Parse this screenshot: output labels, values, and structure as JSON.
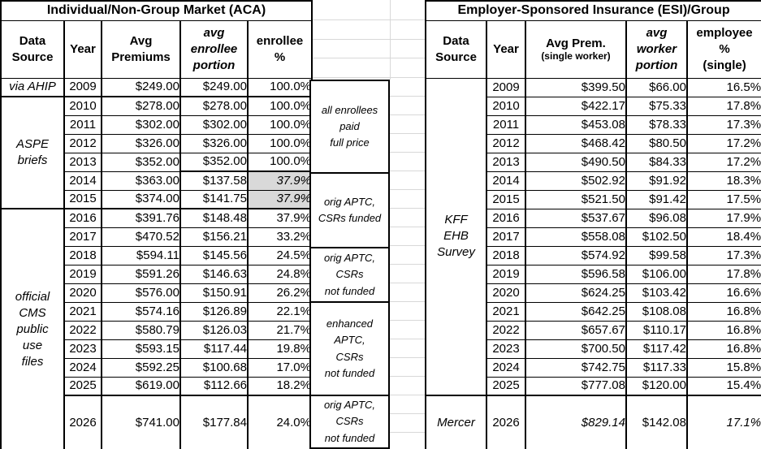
{
  "colors": {
    "cell_shading": "#d9d9d9",
    "border": "#000000",
    "gridline": "#d8d8d8"
  },
  "left_table": {
    "title": "Individual/Non-Group Market (ACA)",
    "headers": {
      "source": "Data\nSource",
      "year": "Year",
      "premium": "Avg\nPremiums",
      "portion": "avg\nenrollee\nportion",
      "pct": "enrollee\n%"
    },
    "source_groups": [
      {
        "label": "via AHIP"
      },
      {
        "label": "ASPE\nbriefs"
      },
      {
        "label": "official\nCMS\npublic\nuse\nfiles"
      }
    ],
    "rows": [
      {
        "year": "2009",
        "premium": "$249.00",
        "portion": "$249.00",
        "pct": "100.0%"
      },
      {
        "year": "2010",
        "premium": "$278.00",
        "portion": "$278.00",
        "pct": "100.0%"
      },
      {
        "year": "2011",
        "premium": "$302.00",
        "portion": "$302.00",
        "pct": "100.0%"
      },
      {
        "year": "2012",
        "premium": "$326.00",
        "portion": "$326.00",
        "pct": "100.0%"
      },
      {
        "year": "2013",
        "premium": "$352.00",
        "portion": "$352.00",
        "pct": "100.0%"
      },
      {
        "year": "2014",
        "premium": "$363.00",
        "portion": "$137.58",
        "pct": "37.9%"
      },
      {
        "year": "2015",
        "premium": "$374.00",
        "portion": "$141.75",
        "pct": "37.9%"
      },
      {
        "year": "2016",
        "premium": "$391.76",
        "portion": "$148.48",
        "pct": "37.9%"
      },
      {
        "year": "2017",
        "premium": "$470.52",
        "portion": "$156.21",
        "pct": "33.2%"
      },
      {
        "year": "2018",
        "premium": "$594.11",
        "portion": "$145.56",
        "pct": "24.5%"
      },
      {
        "year": "2019",
        "premium": "$591.26",
        "portion": "$146.63",
        "pct": "24.8%"
      },
      {
        "year": "2020",
        "premium": "$576.00",
        "portion": "$150.91",
        "pct": "26.2%"
      },
      {
        "year": "2021",
        "premium": "$574.16",
        "portion": "$126.89",
        "pct": "22.1%"
      },
      {
        "year": "2022",
        "premium": "$580.79",
        "portion": "$126.03",
        "pct": "21.7%"
      },
      {
        "year": "2023",
        "premium": "$593.15",
        "portion": "$117.44",
        "pct": "19.8%"
      },
      {
        "year": "2024",
        "premium": "$592.25",
        "portion": "$100.68",
        "pct": "17.0%"
      },
      {
        "year": "2025",
        "premium": "$619.00",
        "portion": "$112.66",
        "pct": "18.2%"
      },
      {
        "year": "2026",
        "premium": "$741.00",
        "portion": "$177.84",
        "pct": "24.0%"
      }
    ]
  },
  "annotations": [
    {
      "label": "all enrollees\npaid\nfull price"
    },
    {
      "label": "orig APTC,\nCSRs funded"
    },
    {
      "label": "orig APTC,\nCSRs\nnot funded"
    },
    {
      "label": "enhanced\nAPTC,\nCSRs\nnot funded"
    },
    {
      "label": "orig APTC,\nCSRs\nnot funded"
    }
  ],
  "right_table": {
    "title": "Employer-Sponsored Insurance (ESI)/Group",
    "headers": {
      "source": "Data\nSource",
      "year": "Year",
      "premium_line1": "Avg Prem.",
      "premium_line2": "(single worker)",
      "portion": "avg\nworker\nportion",
      "pct": "employee\n%\n(single)"
    },
    "source_groups": [
      {
        "label": "KFF\nEHB\nSurvey"
      },
      {
        "label": "Mercer"
      }
    ],
    "rows": [
      {
        "year": "2009",
        "premium": "$399.50",
        "portion": "$66.00",
        "pct": "16.5%"
      },
      {
        "year": "2010",
        "premium": "$422.17",
        "portion": "$75.33",
        "pct": "17.8%"
      },
      {
        "year": "2011",
        "premium": "$453.08",
        "portion": "$78.33",
        "pct": "17.3%"
      },
      {
        "year": "2012",
        "premium": "$468.42",
        "portion": "$80.50",
        "pct": "17.2%"
      },
      {
        "year": "2013",
        "premium": "$490.50",
        "portion": "$84.33",
        "pct": "17.2%"
      },
      {
        "year": "2014",
        "premium": "$502.92",
        "portion": "$91.92",
        "pct": "18.3%"
      },
      {
        "year": "2015",
        "premium": "$521.50",
        "portion": "$91.42",
        "pct": "17.5%"
      },
      {
        "year": "2016",
        "premium": "$537.67",
        "portion": "$96.08",
        "pct": "17.9%"
      },
      {
        "year": "2017",
        "premium": "$558.08",
        "portion": "$102.50",
        "pct": "18.4%"
      },
      {
        "year": "2018",
        "premium": "$574.92",
        "portion": "$99.58",
        "pct": "17.3%"
      },
      {
        "year": "2019",
        "premium": "$596.58",
        "portion": "$106.00",
        "pct": "17.8%"
      },
      {
        "year": "2020",
        "premium": "$624.25",
        "portion": "$103.42",
        "pct": "16.6%"
      },
      {
        "year": "2021",
        "premium": "$642.25",
        "portion": "$108.08",
        "pct": "16.8%"
      },
      {
        "year": "2022",
        "premium": "$657.67",
        "portion": "$110.17",
        "pct": "16.8%"
      },
      {
        "year": "2023",
        "premium": "$700.50",
        "portion": "$117.42",
        "pct": "16.8%"
      },
      {
        "year": "2024",
        "premium": "$742.75",
        "portion": "$117.33",
        "pct": "15.8%"
      },
      {
        "year": "2025",
        "premium": "$777.08",
        "portion": "$120.00",
        "pct": "15.4%"
      },
      {
        "year": "2026",
        "premium": "$829.14",
        "portion": "$142.08",
        "pct": "17.1%"
      }
    ]
  }
}
